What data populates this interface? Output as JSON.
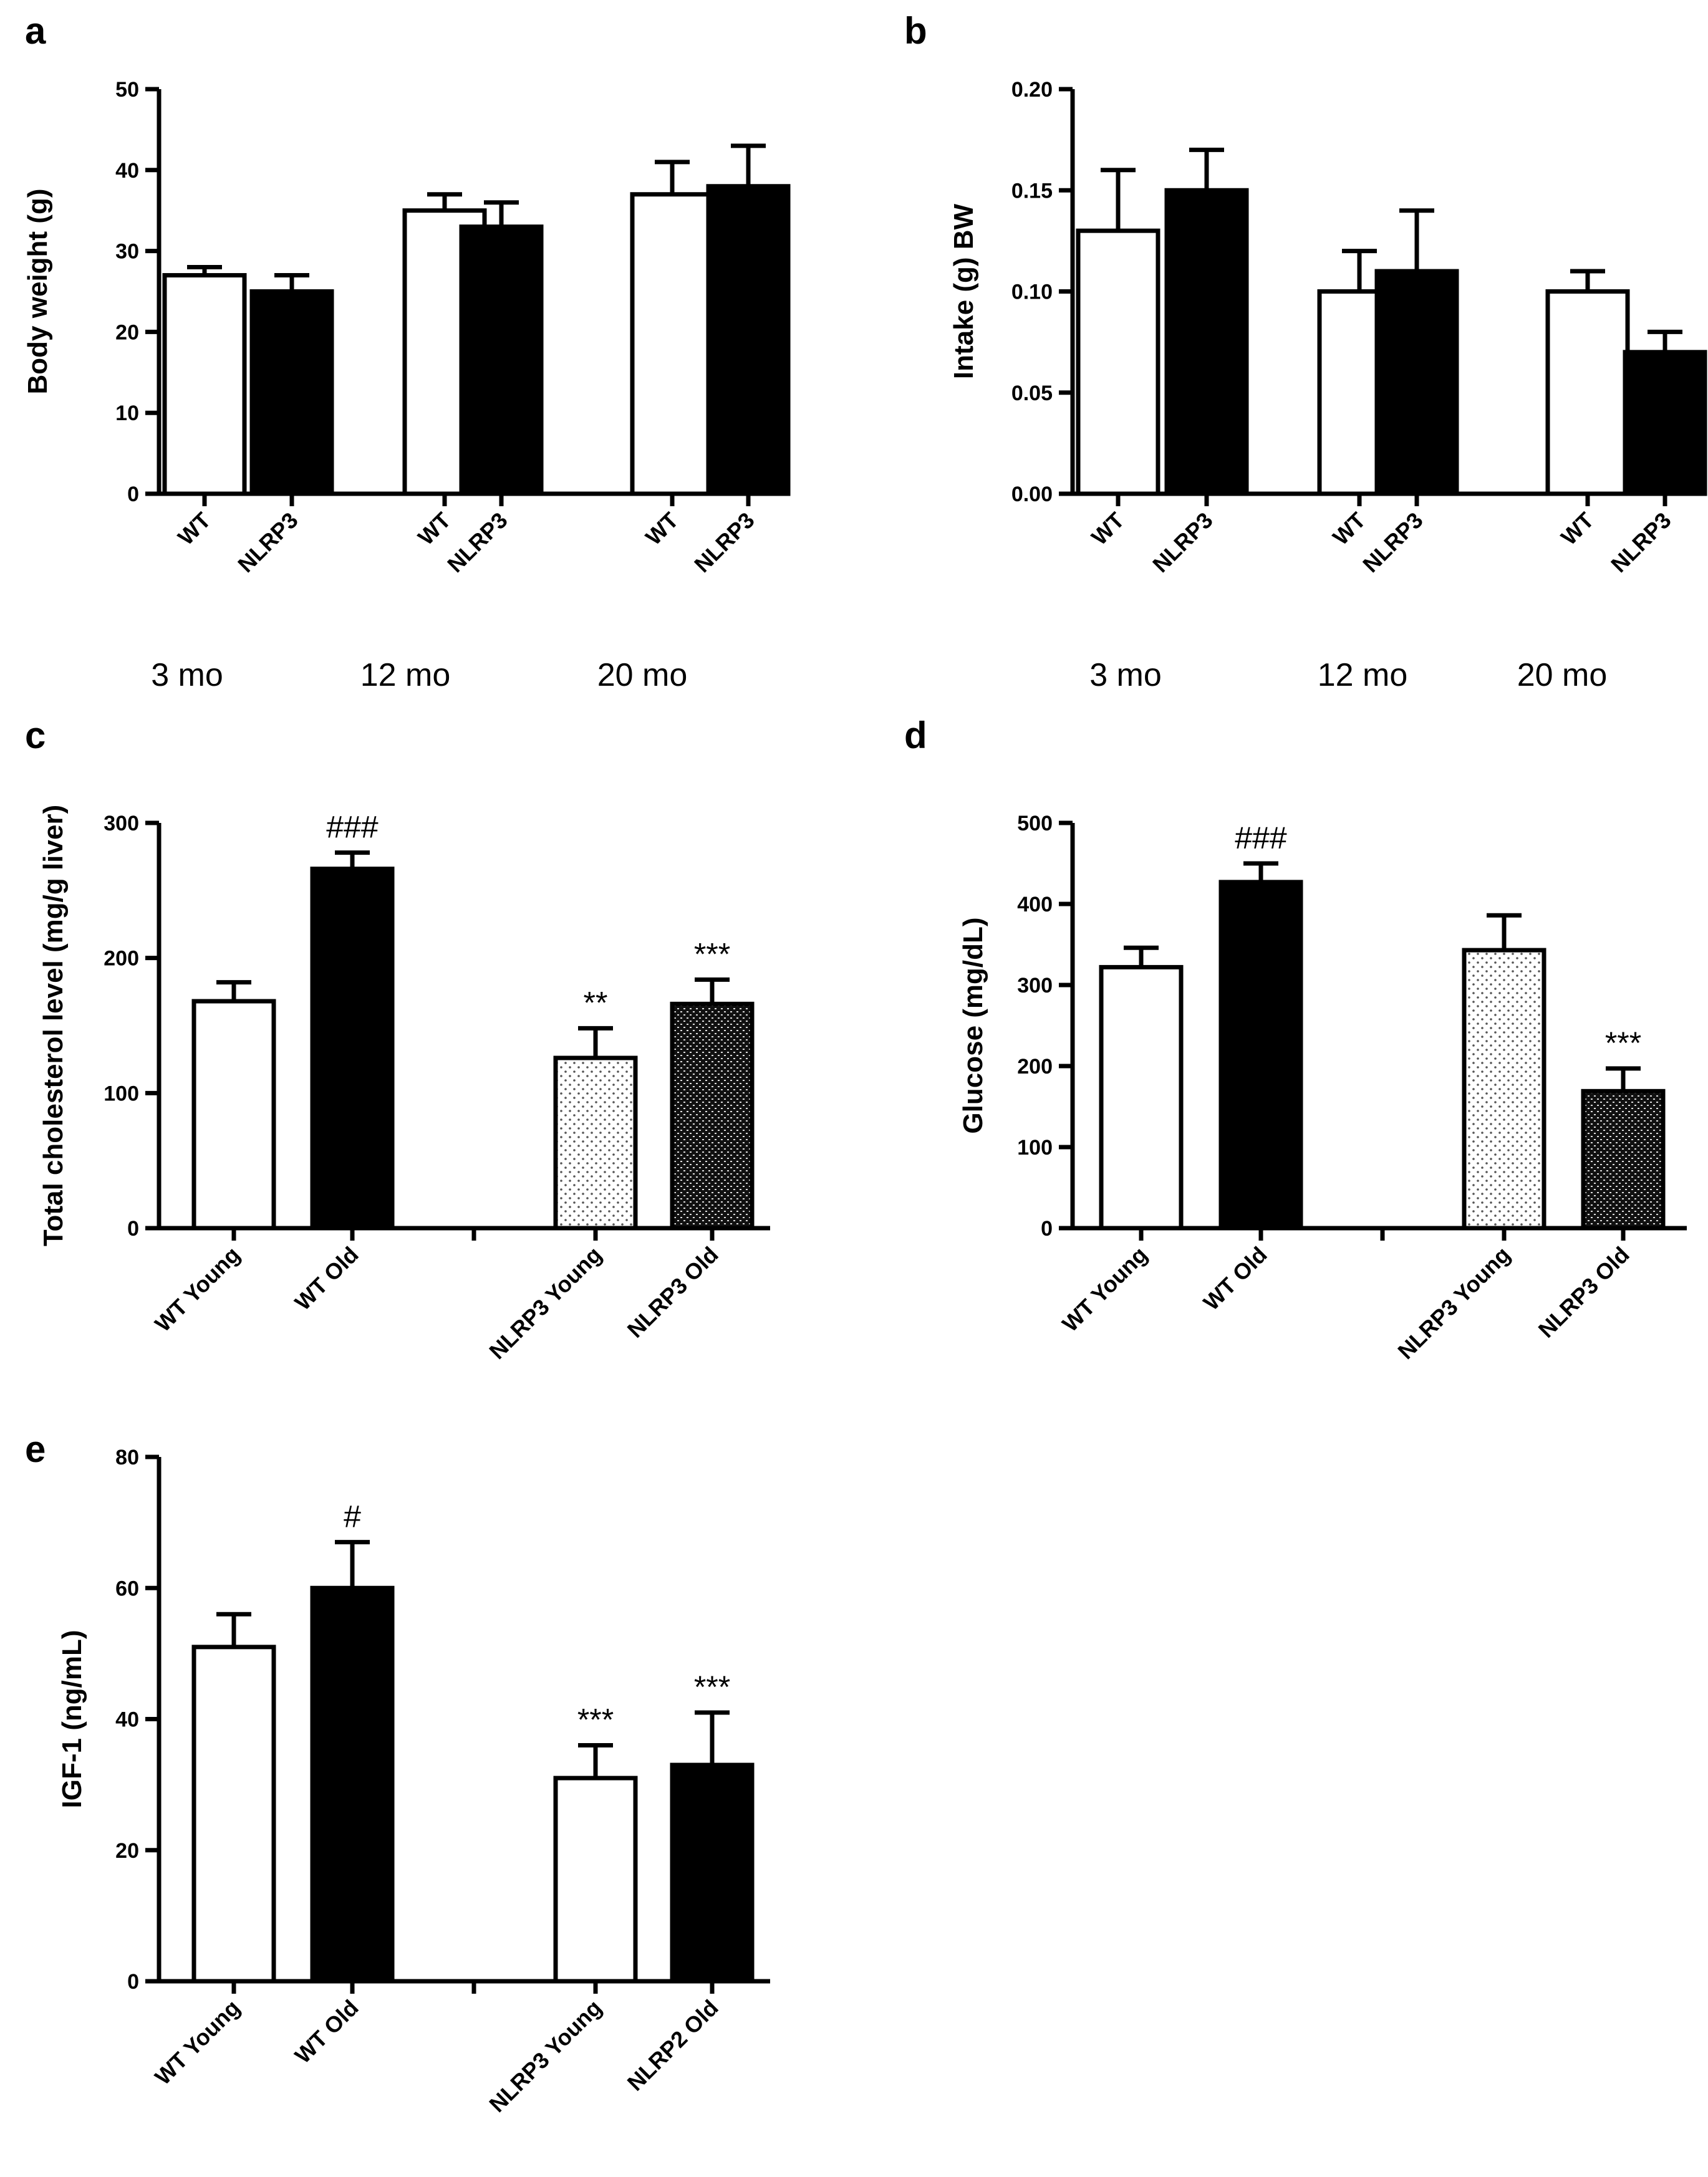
{
  "chart_data": [
    {
      "panel": "a",
      "type": "bar",
      "ylabel": "Body weight  (g)",
      "ylim": [
        0,
        50
      ],
      "yticks": [
        "0",
        "10",
        "20",
        "30",
        "40",
        "50"
      ],
      "categories": [
        "WT",
        "NLRP3",
        "WT",
        "NLRP3",
        "WT",
        "NLRP3"
      ],
      "values": [
        27,
        25,
        35,
        33,
        37,
        38
      ],
      "errors": [
        1,
        2,
        2,
        3,
        4,
        5
      ],
      "fills": [
        "white",
        "black",
        "white",
        "black",
        "white",
        "black"
      ],
      "annotations": [
        "",
        "",
        "",
        "",
        "",
        ""
      ],
      "group_labels": [
        "3 mo",
        "12 mo",
        "20 mo"
      ]
    },
    {
      "panel": "b",
      "type": "bar",
      "ylabel": "Intake  (g) BW",
      "ylim": [
        0,
        0.2
      ],
      "yticks": [
        "0.00",
        "0.05",
        "0.10",
        "0.15",
        "0.20"
      ],
      "categories": [
        "WT",
        "NLRP3",
        "WT",
        "NLRP3",
        "WT",
        "NLRP3"
      ],
      "values": [
        0.13,
        0.15,
        0.1,
        0.11,
        0.1,
        0.07
      ],
      "errors": [
        0.03,
        0.02,
        0.02,
        0.03,
        0.01,
        0.01
      ],
      "fills": [
        "white",
        "black",
        "white",
        "black",
        "white",
        "black"
      ],
      "annotations": [
        "",
        "",
        "",
        "",
        "",
        ""
      ],
      "group_labels": [
        "3 mo",
        "12 mo",
        "20 mo"
      ]
    },
    {
      "panel": "c",
      "type": "bar",
      "ylabel": "Total cholesterol level (mg/g liver)",
      "ylim": [
        0,
        300
      ],
      "yticks": [
        "0",
        "100",
        "200",
        "300"
      ],
      "categories": [
        "WT Young",
        "WT Old",
        "NLRP3 Young",
        "NLRP3 Old"
      ],
      "values": [
        168,
        266,
        126,
        166
      ],
      "errors": [
        14,
        12,
        22,
        18
      ],
      "fills": [
        "white",
        "black",
        "dots",
        "dense"
      ],
      "annotations": [
        "",
        "###",
        "**",
        "***"
      ],
      "group_labels": []
    },
    {
      "panel": "d",
      "type": "bar",
      "ylabel": "Glucose (mg/dL)",
      "ylim": [
        0,
        500
      ],
      "yticks": [
        "0",
        "100",
        "200",
        "300",
        "400",
        "500"
      ],
      "categories": [
        "WT Young",
        "WT Old",
        "NLRP3 Young",
        "NLRP3 Old"
      ],
      "values": [
        322,
        427,
        343,
        169
      ],
      "errors": [
        24,
        23,
        43,
        28
      ],
      "fills": [
        "white",
        "black",
        "dots",
        "dense"
      ],
      "annotations": [
        "",
        "###",
        "",
        "***"
      ],
      "group_labels": []
    },
    {
      "panel": "e",
      "type": "bar",
      "ylabel": "IGF-1 (ng/mL)",
      "ylim": [
        0,
        80
      ],
      "yticks": [
        "0",
        "20",
        "40",
        "60",
        "80"
      ],
      "categories": [
        "WT Young",
        "WT Old",
        "NLRP3 Young",
        "NLRP2 Old"
      ],
      "values": [
        51,
        60,
        31,
        33
      ],
      "errors": [
        5,
        7,
        5,
        8
      ],
      "fills": [
        "white",
        "black",
        "white",
        "black"
      ],
      "annotations": [
        "",
        "#",
        "***",
        "***"
      ],
      "group_labels": []
    }
  ]
}
